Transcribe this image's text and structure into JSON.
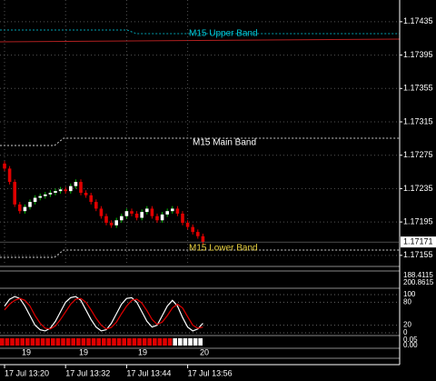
{
  "chart_data": [
    {
      "type": "candlestick",
      "categories": [
        "17 Jul 13:20",
        null,
        null,
        null,
        null,
        null,
        null,
        null,
        null,
        null,
        null,
        null,
        "17 Jul 13:32",
        null,
        null,
        null,
        null,
        null,
        null,
        null,
        null,
        null,
        null,
        null,
        "17 Jul 13:44",
        null,
        null,
        null,
        null,
        null,
        null,
        null,
        null,
        null,
        null,
        null,
        "17 Jul 13:56",
        null,
        null,
        null
      ],
      "open": [
        1.17265,
        1.17259,
        1.17243,
        1.17216,
        1.17208,
        1.17213,
        1.17219,
        1.17224,
        1.17226,
        1.17228,
        1.1723,
        1.17232,
        1.17234,
        1.17232,
        1.17238,
        1.17243,
        1.1723,
        1.17227,
        1.17219,
        1.17211,
        1.17202,
        1.17194,
        1.17191,
        1.17197,
        1.17202,
        1.17208,
        1.17205,
        1.172,
        1.17207,
        1.17211,
        1.17202,
        1.17197,
        1.17204,
        1.17208,
        1.17211,
        1.17205,
        1.17194,
        1.17189,
        1.17183,
        1.17178
      ],
      "high": [
        1.17268,
        1.17262,
        1.17246,
        1.17219,
        1.17216,
        1.17222,
        1.17227,
        1.17229,
        1.17231,
        1.17233,
        1.17235,
        1.17237,
        1.17237,
        1.17241,
        1.17246,
        1.17246,
        1.17233,
        1.1723,
        1.17222,
        1.17214,
        1.17205,
        1.17197,
        1.172,
        1.17205,
        1.17211,
        1.17211,
        1.17208,
        1.1721,
        1.17214,
        1.17214,
        1.17205,
        1.17207,
        1.17211,
        1.17214,
        1.17214,
        1.17208,
        1.17197,
        1.17192,
        1.17186,
        1.17181
      ],
      "low": [
        1.17256,
        1.1724,
        1.17213,
        1.17205,
        1.17205,
        1.1721,
        1.17216,
        1.17221,
        1.17223,
        1.17225,
        1.17227,
        1.17229,
        1.17229,
        1.17229,
        1.17235,
        1.17227,
        1.17224,
        1.17216,
        1.17208,
        1.17199,
        1.17191,
        1.17188,
        1.17188,
        1.17194,
        1.17199,
        1.17202,
        1.17197,
        1.17197,
        1.17204,
        1.17199,
        1.17194,
        1.17194,
        1.17201,
        1.17205,
        1.17202,
        1.17191,
        1.17186,
        1.1718,
        1.17175,
        1.17168
      ],
      "close": [
        1.17259,
        1.17243,
        1.17216,
        1.17208,
        1.17213,
        1.17219,
        1.17224,
        1.17226,
        1.17228,
        1.1723,
        1.17232,
        1.17234,
        1.17232,
        1.17238,
        1.17243,
        1.1723,
        1.17227,
        1.17219,
        1.17211,
        1.17202,
        1.17194,
        1.17191,
        1.17197,
        1.17202,
        1.17208,
        1.17205,
        1.172,
        1.17207,
        1.17211,
        1.17202,
        1.17197,
        1.17204,
        1.17208,
        1.17211,
        1.17205,
        1.17194,
        1.17189,
        1.17183,
        1.17178,
        1.17171
      ],
      "up_color": "#ffffff",
      "down_color": "#e00000",
      "wick_color": "#00c000",
      "ylim": [
        1.17145,
        1.17461
      ],
      "yticks": [
        1.17435,
        1.17395,
        1.17355,
        1.17315,
        1.17275,
        1.17235,
        1.17195,
        1.17155
      ],
      "grid": true,
      "current_price": 1.17171,
      "annotations": [
        {
          "text": "M15 Upper Band",
          "color": "#00c8d8"
        },
        {
          "text": "M15 Main Band",
          "color": "#ffffff"
        },
        {
          "text": "M15 Lower Band",
          "color": "#e8d040"
        }
      ]
    },
    {
      "type": "line",
      "series": [
        {
          "color": "#ffffff",
          "values": [
            70,
            88,
            95,
            90,
            70,
            45,
            20,
            8,
            5,
            12,
            30,
            55,
            80,
            92,
            95,
            85,
            60,
            35,
            15,
            5,
            8,
            25,
            50,
            75,
            90,
            92,
            80,
            55,
            30,
            15,
            20,
            45,
            70,
            85,
            70,
            40,
            15,
            5,
            10,
            25
          ]
        },
        {
          "color": "#e00000",
          "values": [
            60,
            75,
            85,
            90,
            85,
            70,
            45,
            25,
            12,
            10,
            18,
            35,
            55,
            75,
            88,
            90,
            80,
            60,
            38,
            20,
            10,
            14,
            28,
            50,
            70,
            85,
            88,
            78,
            58,
            35,
            22,
            28,
            45,
            65,
            75,
            65,
            42,
            20,
            12,
            15
          ]
        }
      ],
      "ylim": [
        0,
        100
      ],
      "yticks": [
        100,
        80,
        20,
        0
      ]
    }
  ],
  "panel_labels": [
    "188.4115",
    "200.8615"
  ],
  "strip_labels": [
    "0.05",
    "0.00"
  ],
  "day_labels": [
    "19",
    "19",
    "19",
    "20"
  ]
}
